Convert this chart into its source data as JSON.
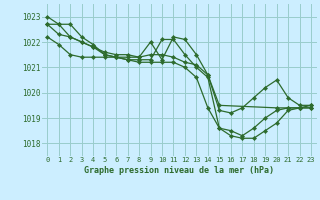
{
  "title": "Graphe pression niveau de la mer (hPa)",
  "bg_color": "#cceeff",
  "grid_color": "#99cccc",
  "line_color": "#2d6b2d",
  "marker_color": "#2d6b2d",
  "xlim": [
    -0.5,
    23.5
  ],
  "ylim": [
    1017.5,
    1023.5
  ],
  "yticks": [
    1018,
    1019,
    1020,
    1021,
    1022,
    1023
  ],
  "xticks": [
    0,
    1,
    2,
    3,
    4,
    5,
    6,
    7,
    8,
    9,
    10,
    11,
    12,
    13,
    14,
    15,
    16,
    17,
    18,
    19,
    20,
    21,
    22,
    23
  ],
  "series": [
    {
      "x": [
        0,
        1,
        2,
        3,
        4,
        5,
        6,
        7,
        8,
        9,
        10,
        11,
        12,
        13,
        14,
        15,
        16,
        17,
        18,
        19,
        20,
        21,
        22,
        23
      ],
      "y": [
        1023.0,
        1022.7,
        1022.7,
        1022.2,
        1021.9,
        1021.5,
        1021.4,
        1021.4,
        1021.4,
        1022.0,
        1021.3,
        1022.2,
        1022.1,
        1021.5,
        1020.7,
        1019.5,
        null,
        null,
        null,
        null,
        1019.4,
        1019.4,
        1019.4,
        1019.5
      ]
    },
    {
      "x": [
        0,
        1,
        2,
        3,
        4,
        5,
        6,
        7,
        8,
        9,
        10,
        11,
        12,
        13,
        14,
        15,
        16,
        17,
        18,
        19,
        20,
        21,
        22,
        23
      ],
      "y": [
        1022.7,
        1022.7,
        1022.2,
        1022.0,
        1021.8,
        1021.5,
        1021.4,
        1021.3,
        1021.3,
        1021.3,
        1022.1,
        1022.1,
        1021.5,
        1021.0,
        1020.6,
        1018.6,
        1018.3,
        1018.2,
        1018.2,
        1018.5,
        1018.8,
        1019.3,
        1019.4,
        1019.4
      ]
    },
    {
      "x": [
        0,
        1,
        2,
        3,
        4,
        5,
        6,
        7,
        8,
        9,
        10,
        11,
        12,
        13,
        14,
        15,
        16,
        17,
        18,
        19,
        20,
        21,
        22,
        23
      ],
      "y": [
        1022.2,
        1021.9,
        1021.5,
        1021.4,
        1021.4,
        1021.4,
        1021.4,
        1021.3,
        1021.2,
        1021.2,
        1021.2,
        1021.2,
        1021.0,
        1020.6,
        1019.4,
        1018.6,
        1018.5,
        1018.3,
        1018.6,
        1019.0,
        1019.3,
        1019.4,
        1019.4,
        1019.4
      ]
    },
    {
      "x": [
        0,
        1,
        2,
        3,
        4,
        5,
        6,
        7,
        8,
        9,
        10,
        11,
        12,
        13,
        14,
        15,
        16,
        17,
        18,
        19,
        20,
        21,
        22,
        23
      ],
      "y": [
        1022.7,
        1022.3,
        1022.2,
        1022.0,
        1021.8,
        1021.6,
        1021.5,
        1021.5,
        1021.4,
        1021.5,
        1021.5,
        1021.4,
        1021.2,
        1021.1,
        1020.7,
        1019.3,
        1019.2,
        1019.4,
        1019.8,
        1020.2,
        1020.5,
        1019.8,
        1019.5,
        1019.5
      ]
    }
  ]
}
